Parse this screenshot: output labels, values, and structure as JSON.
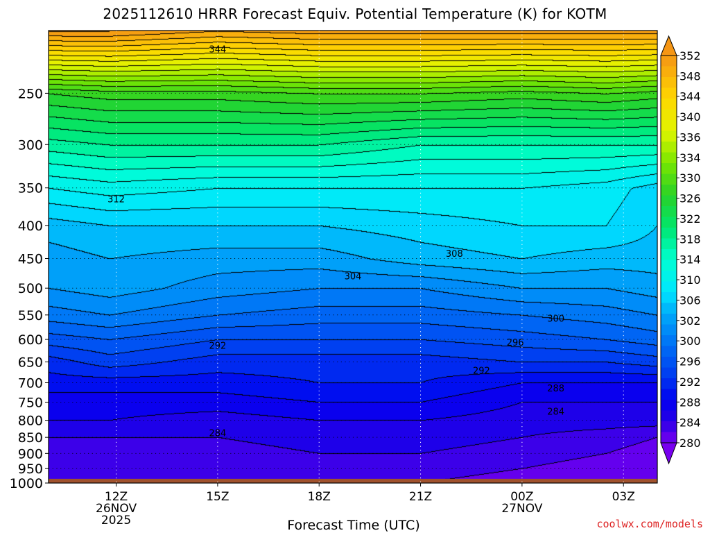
{
  "chart_data": {
    "type": "heatmap",
    "title": "2025112610 HRRR Forecast Equiv. Potential Temperature (K) for KOTM",
    "xlabel": "Forecast Time (UTC)",
    "ylabel": "",
    "y_axis": {
      "scale": "log",
      "inverted": true,
      "range": [
        200,
        1000
      ],
      "ticks": [
        250,
        300,
        350,
        400,
        450,
        500,
        550,
        600,
        650,
        700,
        750,
        800,
        850,
        900,
        950,
        1000
      ]
    },
    "x_axis": {
      "range_hours_from_10Z": [
        0,
        18
      ],
      "ticks": [
        {
          "hour": 2,
          "label": "12Z",
          "sub1": "26NOV",
          "sub2": "2025"
        },
        {
          "hour": 5,
          "label": "15Z",
          "sub1": "",
          "sub2": ""
        },
        {
          "hour": 8,
          "label": "18Z",
          "sub1": "",
          "sub2": ""
        },
        {
          "hour": 11,
          "label": "21Z",
          "sub1": "",
          "sub2": ""
        },
        {
          "hour": 14,
          "label": "00Z",
          "sub1": "27NOV",
          "sub2": ""
        },
        {
          "hour": 17,
          "label": "03Z",
          "sub1": "",
          "sub2": ""
        }
      ]
    },
    "grid": true,
    "colorbar": {
      "levels": [
        280,
        282,
        284,
        286,
        288,
        290,
        292,
        294,
        296,
        298,
        300,
        302,
        304,
        306,
        308,
        310,
        312,
        314,
        316,
        318,
        320,
        322,
        324,
        326,
        328,
        330,
        332,
        334,
        336,
        338,
        340,
        342,
        344,
        346,
        348,
        350,
        352
      ],
      "tick_labels": [
        280,
        284,
        288,
        292,
        296,
        300,
        302,
        306,
        310,
        314,
        318,
        322,
        326,
        330,
        334,
        336,
        340,
        344,
        348,
        352
      ],
      "extend": "both"
    },
    "profiles": [
      {
        "hour": 0,
        "levels": [
          [
            1000,
            282
          ],
          [
            950,
            282
          ],
          [
            900,
            283
          ],
          [
            850,
            284
          ],
          [
            800,
            286
          ],
          [
            750,
            287
          ],
          [
            700,
            289
          ],
          [
            650,
            291
          ],
          [
            600,
            295
          ],
          [
            550,
            299
          ],
          [
            500,
            302
          ],
          [
            450,
            303
          ],
          [
            400,
            305
          ],
          [
            350,
            310
          ],
          [
            300,
            317
          ],
          [
            250,
            326
          ],
          [
            200,
            352
          ]
        ]
      },
      {
        "hour": 1.8,
        "levels": [
          [
            1000,
            282
          ],
          [
            950,
            282
          ],
          [
            900,
            283
          ],
          [
            850,
            284
          ],
          [
            800,
            286
          ],
          [
            750,
            287
          ],
          [
            700,
            289
          ],
          [
            650,
            293
          ],
          [
            600,
            296
          ],
          [
            550,
            300
          ],
          [
            500,
            303
          ],
          [
            450,
            304
          ],
          [
            400,
            306
          ],
          [
            350,
            311
          ],
          [
            300,
            318
          ],
          [
            250,
            327
          ],
          [
            200,
            352
          ]
        ]
      },
      {
        "hour": 5,
        "levels": [
          [
            1000,
            282
          ],
          [
            950,
            283
          ],
          [
            900,
            283
          ],
          [
            850,
            284
          ],
          [
            800,
            285
          ],
          [
            750,
            287
          ],
          [
            700,
            289
          ],
          [
            650,
            291
          ],
          [
            600,
            294
          ],
          [
            550,
            298
          ],
          [
            500,
            301
          ],
          [
            450,
            303
          ],
          [
            400,
            306
          ],
          [
            350,
            310
          ],
          [
            300,
            318
          ],
          [
            250,
            327
          ],
          [
            200,
            350
          ]
        ]
      },
      {
        "hour": 8,
        "levels": [
          [
            1000,
            283
          ],
          [
            950,
            283
          ],
          [
            900,
            284
          ],
          [
            850,
            285
          ],
          [
            800,
            286
          ],
          [
            750,
            288
          ],
          [
            700,
            290
          ],
          [
            650,
            291
          ],
          [
            600,
            294
          ],
          [
            550,
            297
          ],
          [
            500,
            300
          ],
          [
            450,
            303
          ],
          [
            400,
            306
          ],
          [
            350,
            310
          ],
          [
            300,
            318
          ],
          [
            250,
            328
          ],
          [
            200,
            351
          ]
        ]
      },
      {
        "hour": 11,
        "levels": [
          [
            1000,
            282
          ],
          [
            950,
            283
          ],
          [
            900,
            284
          ],
          [
            850,
            285
          ],
          [
            800,
            286
          ],
          [
            750,
            288
          ],
          [
            700,
            290
          ],
          [
            650,
            291
          ],
          [
            600,
            294
          ],
          [
            550,
            297
          ],
          [
            500,
            300
          ],
          [
            450,
            305
          ],
          [
            400,
            307
          ],
          [
            350,
            310
          ],
          [
            300,
            316
          ],
          [
            250,
            328
          ],
          [
            200,
            351
          ]
        ]
      },
      {
        "hour": 14,
        "levels": [
          [
            1000,
            281
          ],
          [
            950,
            282
          ],
          [
            900,
            283
          ],
          [
            850,
            284
          ],
          [
            800,
            285
          ],
          [
            750,
            286
          ],
          [
            700,
            288
          ],
          [
            650,
            292
          ],
          [
            600,
            295
          ],
          [
            550,
            298
          ],
          [
            500,
            302
          ],
          [
            450,
            306
          ],
          [
            400,
            308
          ],
          [
            350,
            310
          ],
          [
            300,
            316
          ],
          [
            250,
            327
          ],
          [
            200,
            351
          ]
        ]
      },
      {
        "hour": 16.5,
        "levels": [
          [
            1000,
            280
          ],
          [
            950,
            281
          ],
          [
            900,
            282
          ],
          [
            850,
            283
          ],
          [
            800,
            285
          ],
          [
            750,
            286
          ],
          [
            700,
            288
          ],
          [
            650,
            292
          ],
          [
            600,
            296
          ],
          [
            550,
            299
          ],
          [
            500,
            302
          ],
          [
            450,
            305
          ],
          [
            400,
            308
          ],
          [
            350,
            309
          ],
          [
            300,
            316
          ],
          [
            250,
            328
          ],
          [
            200,
            351
          ]
        ]
      },
      {
        "hour": 18,
        "levels": [
          [
            1000,
            280
          ],
          [
            950,
            280
          ],
          [
            900,
            281
          ],
          [
            850,
            282
          ],
          [
            800,
            285
          ],
          [
            750,
            286
          ],
          [
            700,
            288
          ],
          [
            650,
            293
          ],
          [
            600,
            297
          ],
          [
            550,
            300
          ],
          [
            500,
            303
          ],
          [
            450,
            305
          ],
          [
            400,
            306
          ],
          [
            350,
            307
          ],
          [
            300,
            316
          ],
          [
            250,
            327
          ],
          [
            200,
            351
          ]
        ]
      }
    ],
    "contour_labels": [
      {
        "value": 344,
        "hour": 5.0,
        "p": 214
      },
      {
        "value": 312,
        "hour": 2.0,
        "p": 365
      },
      {
        "value": 308,
        "hour": 12.0,
        "p": 443
      },
      {
        "value": 304,
        "hour": 9.0,
        "p": 480
      },
      {
        "value": 300,
        "hour": 15.0,
        "p": 558
      },
      {
        "value": 296,
        "hour": 13.8,
        "p": 607
      },
      {
        "value": 292,
        "hour": 5.0,
        "p": 614
      },
      {
        "value": 292,
        "hour": 12.8,
        "p": 671
      },
      {
        "value": 288,
        "hour": 15.0,
        "p": 715
      },
      {
        "value": 284,
        "hour": 5.0,
        "p": 838
      },
      {
        "value": 284,
        "hour": 15.0,
        "p": 776
      }
    ]
  },
  "credit": "coolwx.com/models"
}
